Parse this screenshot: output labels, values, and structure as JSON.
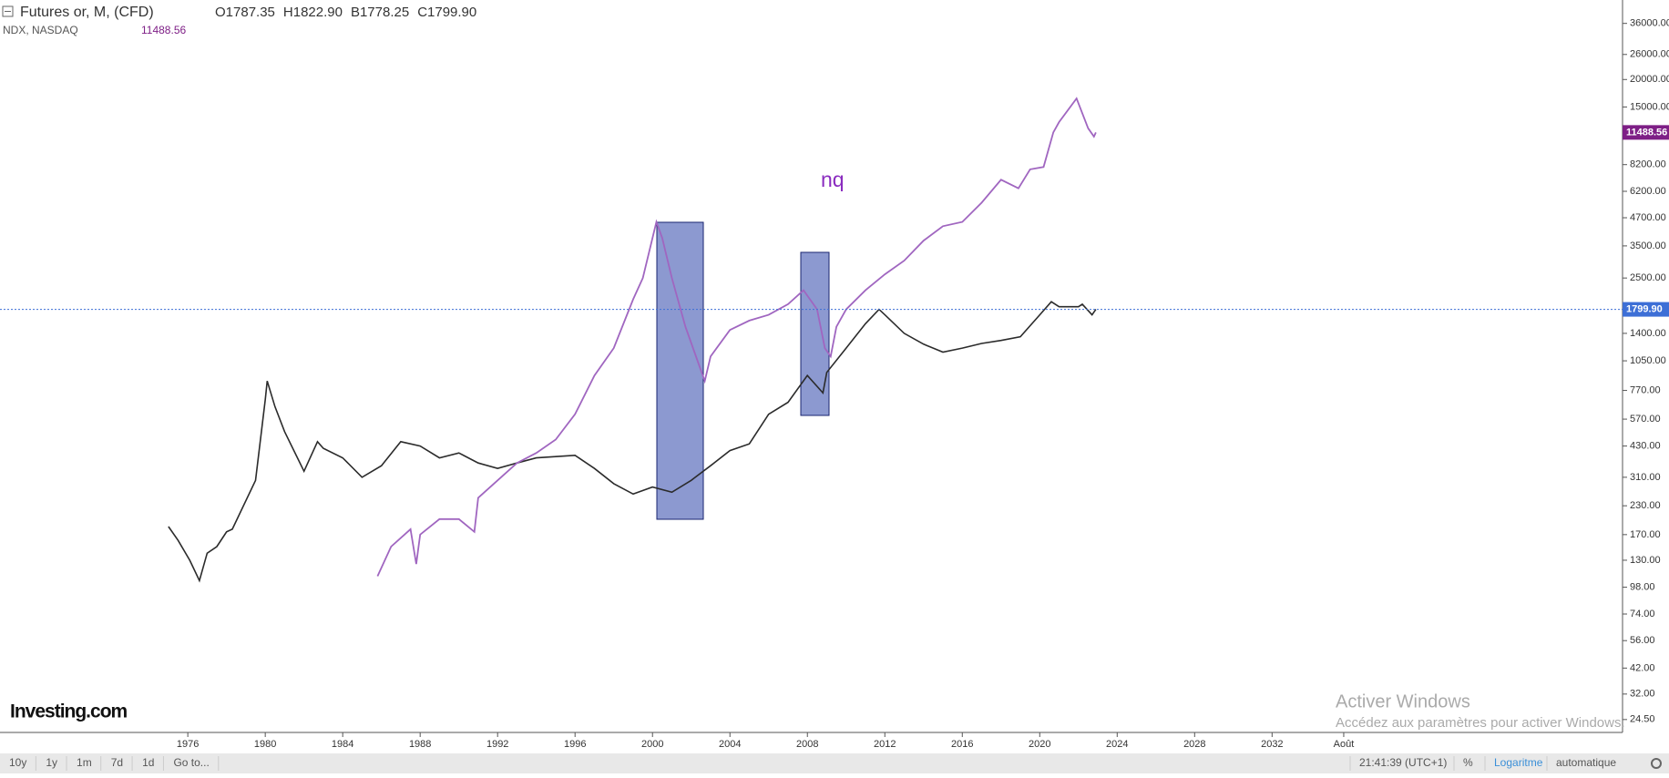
{
  "chart_data": {
    "type": "line",
    "log_scale": true,
    "annotation": "nq",
    "logo": "Investing.com",
    "xlim": [
      1966.3,
      2050.1
    ],
    "xticks": [
      1976,
      1980,
      1984,
      1988,
      1992,
      1996,
      2000,
      2004,
      2008,
      2012,
      2016,
      2020,
      2024,
      2028,
      2032,
      {
        "value": 2035.7,
        "label": "Août"
      }
    ],
    "ylim": [
      21.4,
      46000
    ],
    "yticks": [
      {
        "value": 24.5,
        "label": "24.50"
      },
      {
        "value": 32,
        "label": "32.00"
      },
      {
        "value": 42,
        "label": "42.00"
      },
      {
        "value": 56,
        "label": "56.00"
      },
      {
        "value": 74,
        "label": "74.00"
      },
      {
        "value": 98,
        "label": "98.00"
      },
      {
        "value": 130,
        "label": "130.00"
      },
      {
        "value": 170,
        "label": "170.00"
      },
      {
        "value": 230,
        "label": "230.00"
      },
      {
        "value": 310,
        "label": "310.00"
      },
      {
        "value": 430,
        "label": "430.00"
      },
      {
        "value": 570,
        "label": "570.00"
      },
      {
        "value": 770,
        "label": "770.00"
      },
      {
        "value": 1050,
        "label": "1050.00"
      },
      {
        "value": 1400,
        "label": "1400.00"
      },
      {
        "value": 2500,
        "label": "2500.00"
      },
      {
        "value": 3500,
        "label": "3500.00"
      },
      {
        "value": 4700,
        "label": "4700.00"
      },
      {
        "value": 6200,
        "label": "6200.00"
      },
      {
        "value": 8200,
        "label": "8200.00"
      },
      {
        "value": 15000,
        "label": "15000.00"
      },
      {
        "value": 20000,
        "label": "20000.00"
      },
      {
        "value": 26000,
        "label": "26000.00"
      },
      {
        "value": 36000,
        "label": "36000.00"
      }
    ],
    "series": [
      {
        "name": "Futures or, M, (CFD)",
        "color": "#2b2b2b",
        "label_color": "#3d6fd6",
        "ohlc_labels": [
          "O1787.35",
          "H1822.90",
          "B1778.25",
          "C1799.90"
        ],
        "last_value": {
          "value": 1799.9,
          "label": "1799.90"
        },
        "x": [
          1975,
          1975.5,
          1976.1,
          1976.6,
          1977,
          1977.5,
          1978,
          1978.3,
          1979.5,
          1980,
          1980.1,
          1980.5,
          1981,
          1982,
          1982.7,
          1983,
          1984,
          1985,
          1986,
          1987,
          1988,
          1989,
          1990,
          1991,
          1992,
          1993,
          1994,
          1995,
          1996,
          1997,
          1998,
          1999,
          2000,
          2001,
          2002,
          2003,
          2004,
          2005,
          2006,
          2007,
          2008,
          2008.8,
          2009,
          2010,
          2011,
          2011.7,
          2012,
          2013,
          2014,
          2015,
          2016,
          2017,
          2018,
          2019,
          2020,
          2020.6,
          2021,
          2022,
          2022.2,
          2022.7,
          2022.9
        ],
        "values": [
          185,
          160,
          130,
          105,
          140,
          150,
          175,
          180,
          300,
          700,
          850,
          650,
          500,
          330,
          450,
          420,
          380,
          310,
          350,
          450,
          430,
          380,
          400,
          360,
          340,
          360,
          380,
          385,
          390,
          340,
          290,
          260,
          280,
          265,
          300,
          350,
          410,
          440,
          600,
          680,
          900,
          750,
          930,
          1200,
          1550,
          1800,
          1700,
          1400,
          1250,
          1150,
          1200,
          1260,
          1300,
          1350,
          1700,
          1950,
          1850,
          1850,
          1900,
          1700,
          1800
        ]
      },
      {
        "name": "NDX, NASDAQ",
        "color": "#a066c0",
        "label_color": "#7e1f86",
        "last_value": {
          "value": 11488.56,
          "label": "11488.56"
        },
        "x": [
          1985.8,
          1986.5,
          1987.5,
          1987.8,
          1988,
          1989,
          1990,
          1990.8,
          1991,
          1992,
          1993,
          1994,
          1995,
          1996,
          1997,
          1998,
          1999,
          1999.5,
          2000.2,
          2000.5,
          2001,
          2001.7,
          2002.5,
          2002.7,
          2003,
          2004,
          2005,
          2006,
          2007,
          2007.8,
          2008.5,
          2008.9,
          2009.2,
          2009.5,
          2010,
          2011,
          2012,
          2013,
          2014,
          2015,
          2016,
          2017,
          2018,
          2018.9,
          2019.5,
          2020.2,
          2020.7,
          2021,
          2021.9,
          2022.5,
          2022.8,
          2022.9
        ],
        "values": [
          110,
          150,
          180,
          125,
          170,
          200,
          200,
          175,
          250,
          300,
          360,
          400,
          460,
          600,
          900,
          1200,
          2000,
          2500,
          4500,
          3800,
          2500,
          1500,
          950,
          850,
          1100,
          1450,
          1600,
          1700,
          1900,
          2200,
          1800,
          1200,
          1100,
          1500,
          1800,
          2200,
          2600,
          3000,
          3700,
          4300,
          4500,
          5500,
          7000,
          6400,
          7800,
          8000,
          11500,
          12800,
          16400,
          12000,
          11000,
          11488.56
        ]
      }
    ]
  },
  "toolbar": {
    "left": [
      "10y",
      "1y",
      "1m",
      "7d",
      "1d",
      "Go to..."
    ],
    "right": [
      "21:41:39 (UTC+1)",
      "%",
      "Logaritme",
      "automatique"
    ]
  },
  "watermark": {
    "title": "Activer Windows",
    "text": "Accédez aux paramètres pour activer Windows."
  }
}
